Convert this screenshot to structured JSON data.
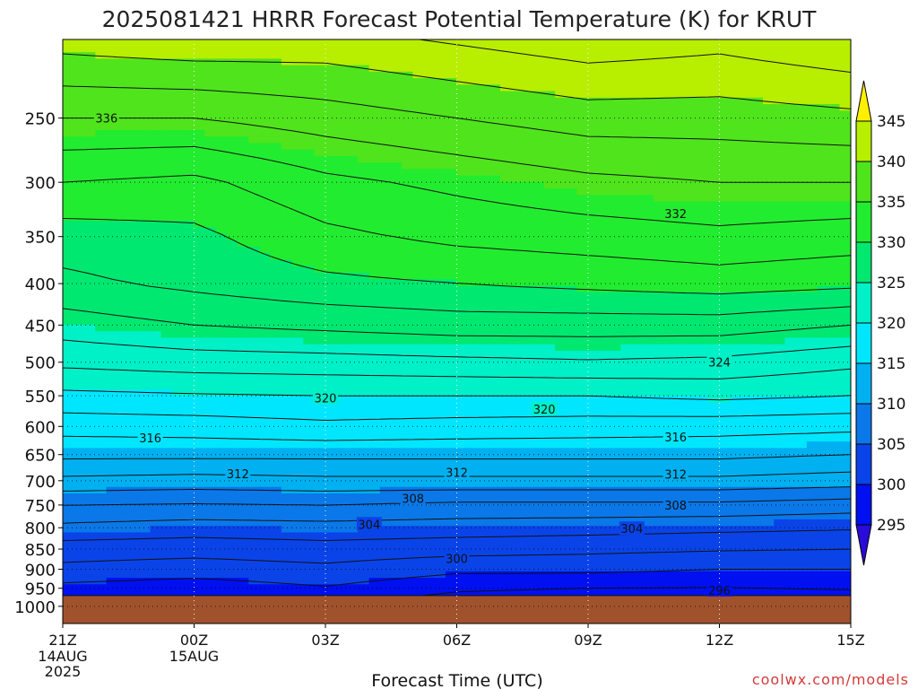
{
  "chart_data": {
    "type": "heatmap",
    "title": "2025081421 HRRR Forecast Potential Temperature (K) for KRUT",
    "xlabel": "Forecast Time (UTC)",
    "ylabel": "",
    "credit": "coolwx.com/models",
    "x_ticks": [
      {
        "label": "21Z",
        "sub": [
          "14AUG",
          "2025"
        ],
        "hour": 0
      },
      {
        "label": "00Z",
        "sub": [
          "15AUG"
        ],
        "hour": 3
      },
      {
        "label": "03Z",
        "sub": [],
        "hour": 6
      },
      {
        "label": "06Z",
        "sub": [],
        "hour": 9
      },
      {
        "label": "09Z",
        "sub": [],
        "hour": 12
      },
      {
        "label": "12Z",
        "sub": [],
        "hour": 15
      },
      {
        "label": "15Z",
        "sub": [],
        "hour": 18
      }
    ],
    "xlim": [
      0,
      18
    ],
    "y_ticks": [
      "250",
      "300",
      "350",
      "400",
      "450",
      "500",
      "550",
      "600",
      "650",
      "700",
      "750",
      "800",
      "850",
      "900",
      "950",
      "1000"
    ],
    "y_axis": "pressure (hPa), log scale, reversed",
    "ylim": [
      1050,
      200
    ],
    "surface_pressure_hPa": 970,
    "colorbar": {
      "levels": [
        295,
        300,
        305,
        310,
        315,
        320,
        325,
        330,
        335,
        340,
        345
      ],
      "colors": [
        "#2a0bd8",
        "#0010f0",
        "#0a44e8",
        "#0a78e8",
        "#00b0f0",
        "#00e6ff",
        "#00f0c8",
        "#00e870",
        "#22ec30",
        "#50e41c",
        "#b8ee00",
        "#fff000"
      ],
      "extend": "both"
    },
    "ground_color": "#a0522d",
    "grid": true,
    "theta_by_pressure_at_hours": {
      "hours": [
        0,
        3,
        6,
        9,
        12,
        15,
        18
      ],
      "levels_hPa": [
        960,
        900,
        850,
        800,
        750,
        700,
        650,
        600,
        550,
        500,
        450,
        400,
        350,
        300,
        250
      ],
      "theta_K": [
        [
          299.0,
          298.5,
          299.5,
          298.0,
          297.5,
          297.5,
          297.8
        ],
        [
          301.5,
          301.0,
          301.5,
          300.5,
          300.5,
          300.0,
          300.0
        ],
        [
          303.0,
          302.8,
          303.2,
          302.8,
          302.5,
          302.2,
          302.0
        ],
        [
          305.5,
          305.0,
          305.2,
          305.0,
          304.8,
          304.5,
          304.2
        ],
        [
          308.0,
          307.8,
          308.0,
          307.5,
          307.5,
          307.5,
          307.0
        ],
        [
          311.5,
          311.2,
          311.5,
          311.5,
          311.5,
          311.5,
          311.0
        ],
        [
          314.5,
          314.5,
          314.5,
          314.5,
          314.5,
          314.5,
          314.0
        ],
        [
          316.8,
          317.0,
          317.5,
          317.2,
          317.0,
          316.8,
          316.5
        ],
        [
          319.5,
          319.8,
          320.0,
          320.0,
          320.0,
          320.5,
          320.0
        ],
        [
          322.5,
          323.0,
          323.2,
          323.5,
          323.8,
          323.5,
          322.5
        ],
        [
          325.0,
          326.0,
          326.5,
          327.0,
          327.0,
          327.0,
          326.0
        ],
        [
          327.5,
          328.5,
          329.5,
          330.0,
          330.5,
          331.0,
          330.5
        ],
        [
          329.0,
          329.5,
          331.5,
          332.5,
          333.0,
          333.5,
          333.0
        ],
        [
          332.0,
          331.5,
          333.5,
          334.5,
          335.5,
          336.0,
          336.0
        ],
        [
          336.0,
          336.0,
          337.0,
          338.0,
          339.0,
          339.0,
          339.5
        ]
      ]
    },
    "contour_interval_K": 2,
    "contour_labels": [
      {
        "value": "336",
        "hour": 1.0,
        "p": 250
      },
      {
        "value": "332",
        "hour": 14.0,
        "p": 328
      },
      {
        "value": "324",
        "hour": 15.0,
        "p": 500
      },
      {
        "value": "320",
        "hour": 6.0,
        "p": 553
      },
      {
        "value": "320",
        "hour": 11.0,
        "p": 571
      },
      {
        "value": "316",
        "hour": 2.0,
        "p": 620
      },
      {
        "value": "316",
        "hour": 14.0,
        "p": 618
      },
      {
        "value": "312",
        "hour": 4.0,
        "p": 686
      },
      {
        "value": "312",
        "hour": 9.0,
        "p": 684
      },
      {
        "value": "312",
        "hour": 14.0,
        "p": 687
      },
      {
        "value": "308",
        "hour": 8.0,
        "p": 736
      },
      {
        "value": "308",
        "hour": 14.0,
        "p": 750
      },
      {
        "value": "304",
        "hour": 7.0,
        "p": 792
      },
      {
        "value": "304",
        "hour": 13.0,
        "p": 802
      },
      {
        "value": "300",
        "hour": 9.0,
        "p": 873
      },
      {
        "value": "296",
        "hour": 15.0,
        "p": 955
      }
    ]
  }
}
